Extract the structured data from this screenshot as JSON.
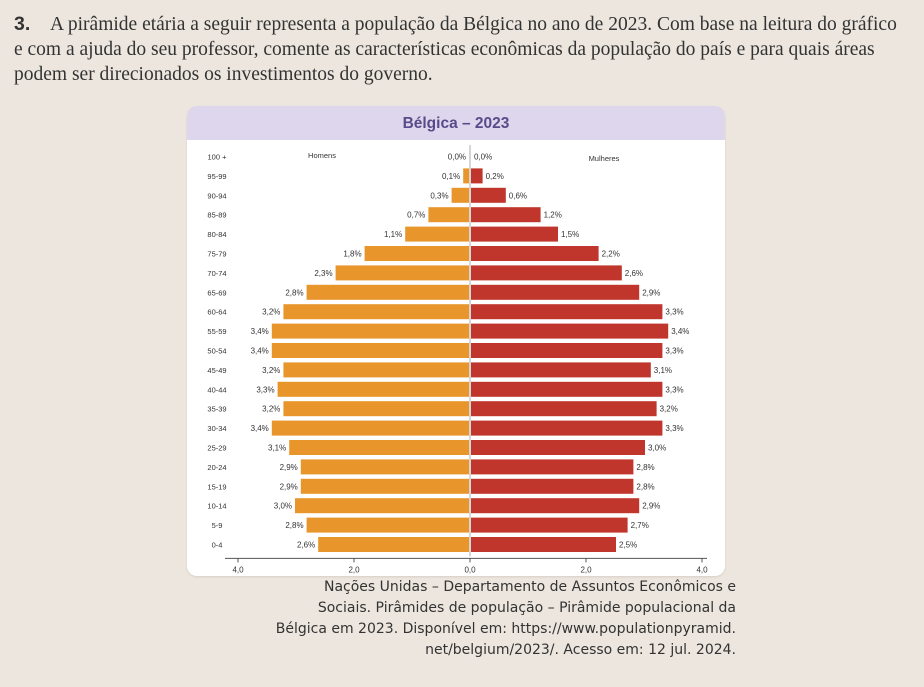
{
  "question": {
    "number": "3.",
    "text": "A pirâmide etária a seguir representa a população da Bélgica no ano de 2023. Com base na leitura do gráfico e com a ajuda do seu professor, comente as características econômicas da população do país e para quais áreas podem ser direcionados os investimentos do governo."
  },
  "chart_data": {
    "type": "bar",
    "orientation": "horizontal",
    "title": "Bélgica – 2023",
    "categories": [
      "100 +",
      "95-99",
      "90-94",
      "85-89",
      "80-84",
      "75-79",
      "70-74",
      "65-69",
      "60-64",
      "55-59",
      "50-54",
      "45-49",
      "40-44",
      "35-39",
      "30-34",
      "25-29",
      "20-24",
      "15-19",
      "10-14",
      "5-9",
      "0-4"
    ],
    "series": [
      {
        "name": "Homens",
        "side": "left",
        "color": "#e8962c",
        "values": [
          0.0,
          0.1,
          0.3,
          0.7,
          1.1,
          1.8,
          2.3,
          2.8,
          3.2,
          3.4,
          3.4,
          3.2,
          3.3,
          3.2,
          3.4,
          3.1,
          2.9,
          2.9,
          3.0,
          2.8,
          2.6
        ],
        "labels": [
          "0,0%",
          "0,1%",
          "0,3%",
          "0,7%",
          "1,1%",
          "1,8%",
          "2,3%",
          "2,8%",
          "3,2%",
          "3,4%",
          "3,4%",
          "3,2%",
          "3,3%",
          "3,2%",
          "3,4%",
          "3,1%",
          "2,9%",
          "2,9%",
          "3,0%",
          "2,8%",
          "2,6%"
        ]
      },
      {
        "name": "Mulheres",
        "side": "right",
        "color": "#c0352c",
        "values": [
          0.0,
          0.2,
          0.6,
          1.2,
          1.5,
          2.2,
          2.6,
          2.9,
          3.3,
          3.4,
          3.3,
          3.1,
          3.3,
          3.2,
          3.3,
          3.0,
          2.8,
          2.8,
          2.9,
          2.7,
          2.5
        ],
        "labels": [
          "0,0%",
          "0,2%",
          "0,6%",
          "1,2%",
          "1,5%",
          "2,2%",
          "2,6%",
          "2,9%",
          "3,3%",
          "3,4%",
          "3,3%",
          "3,1%",
          "3,3%",
          "3,2%",
          "3,3%",
          "3,0%",
          "2,8%",
          "2,8%",
          "2,9%",
          "2,7%",
          "2,5%"
        ]
      }
    ],
    "xticks": [
      "4,0",
      "2,0",
      "0,0",
      "2,0",
      "4,0"
    ],
    "xlim": [
      -4.0,
      4.0
    ],
    "grid": false,
    "legend": "inline labels above bars"
  },
  "source": {
    "lines": [
      "Nações Unidas – Departamento de Assuntos Econômicos e",
      "Sociais. Pirâmides de população – Pirâmide populacional da",
      "Bélgica em 2023. Disponível em: https://www.populationpyramid.",
      "net/belgium/2023/. Acesso em: 12 jul. 2024."
    ]
  }
}
